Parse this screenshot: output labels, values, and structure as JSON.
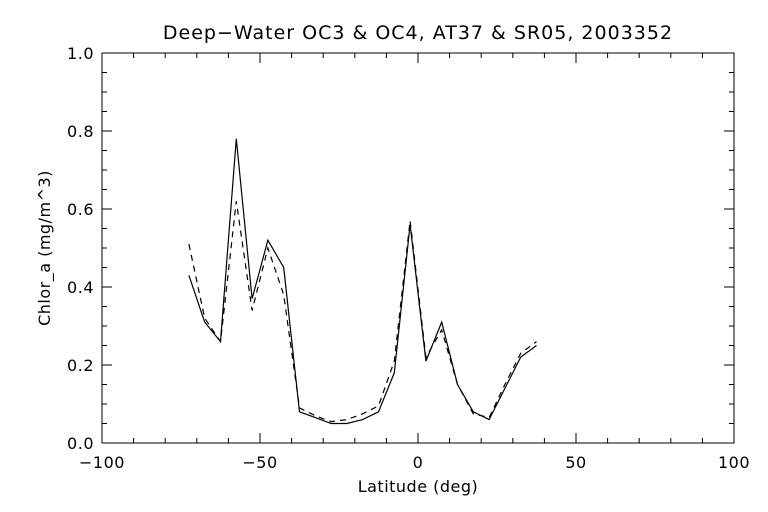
{
  "chart_data": {
    "type": "line",
    "title": "Deep−Water OC3 & OC4, AT37 & SR05, 2003352",
    "xlabel": "Latitude (deg)",
    "ylabel": "Chlor_a (mg/m^3)",
    "xlim": [
      -100,
      100
    ],
    "ylim": [
      0.0,
      1.0
    ],
    "x_ticks": [
      -100,
      -50,
      0,
      50,
      100
    ],
    "x_tick_labels": [
      "−100",
      "−50",
      "0",
      "50",
      "100"
    ],
    "y_ticks": [
      0.0,
      0.2,
      0.4,
      0.6,
      0.8,
      1.0
    ],
    "y_tick_labels": [
      "0.0",
      "0.2",
      "0.4",
      "0.6",
      "0.8",
      "1.0"
    ],
    "grid": false,
    "series": [
      {
        "style": "solid",
        "color": "#000000",
        "x": [
          -72.5,
          -67.5,
          -62.5,
          -57.5,
          -52.5,
          -47.5,
          -42.5,
          -37.5,
          -32.5,
          -27.5,
          -22.5,
          -17.5,
          -12.5,
          -7.5,
          -2.5,
          2.5,
          7.5,
          12.5,
          17.5,
          22.5,
          27.5,
          32.5,
          37.5
        ],
        "y": [
          0.43,
          0.31,
          0.26,
          0.78,
          0.37,
          0.52,
          0.45,
          0.08,
          0.065,
          0.05,
          0.05,
          0.06,
          0.08,
          0.18,
          0.56,
          0.21,
          0.31,
          0.15,
          0.08,
          0.06,
          0.14,
          0.22,
          0.25
        ]
      },
      {
        "style": "dashed",
        "color": "#000000",
        "x": [
          -72.5,
          -67.5,
          -62.5,
          -57.5,
          -52.5,
          -47.5,
          -42.5,
          -37.5,
          -32.5,
          -27.5,
          -22.5,
          -17.5,
          -12.5,
          -7.5,
          -2.5,
          2.5,
          7.5,
          12.5,
          17.5,
          22.5,
          27.5,
          32.5,
          37.5
        ],
        "y": [
          0.51,
          0.32,
          0.26,
          0.62,
          0.34,
          0.5,
          0.38,
          0.09,
          0.07,
          0.055,
          0.06,
          0.075,
          0.095,
          0.21,
          0.57,
          0.22,
          0.29,
          0.15,
          0.075,
          0.065,
          0.15,
          0.23,
          0.26
        ]
      }
    ]
  }
}
